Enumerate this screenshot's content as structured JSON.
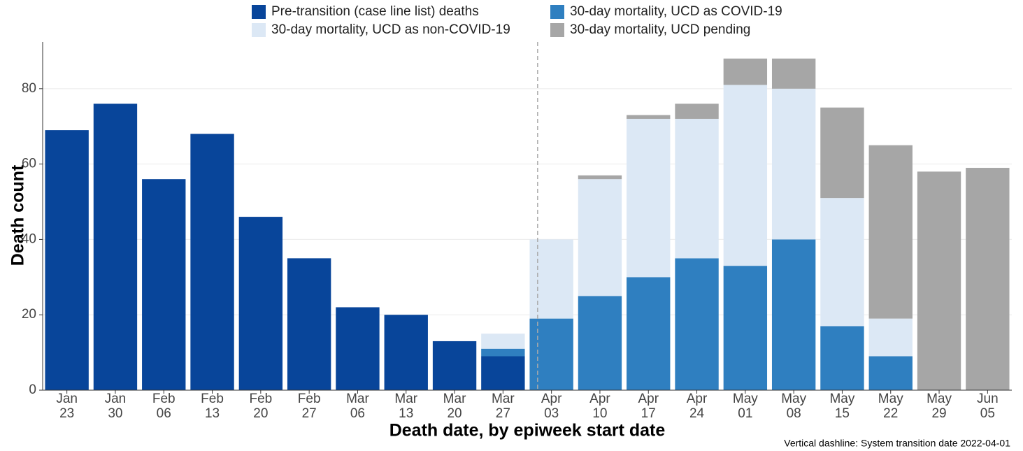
{
  "chart_data": {
    "type": "bar",
    "stacked": true,
    "y_label": "Death count",
    "x_label": "Death date, by epiweek start date",
    "annotation": "Vertical dashline: System transition date 2022-04-01",
    "categories": [
      "Jan 23",
      "Jan 30",
      "Feb 06",
      "Feb 13",
      "Feb 20",
      "Feb 27",
      "Mar 06",
      "Mar 13",
      "Mar 20",
      "Mar 27",
      "Apr 03",
      "Apr 10",
      "Apr 17",
      "Apr 24",
      "May 01",
      "May 08",
      "May 15",
      "May 22",
      "May 29",
      "Jun 05"
    ],
    "series": [
      {
        "name": "Pre-transition (case line list) deaths",
        "color": "#08459a",
        "values": [
          69,
          76,
          56,
          68,
          46,
          35,
          22,
          20,
          13,
          9,
          0,
          0,
          0,
          0,
          0,
          0,
          0,
          0,
          0,
          0
        ]
      },
      {
        "name": "30-day mortality, UCD as COVID-19",
        "color": "#2f7fc0",
        "values": [
          0,
          0,
          0,
          0,
          0,
          0,
          0,
          0,
          0,
          2,
          19,
          25,
          30,
          35,
          33,
          40,
          17,
          9,
          0,
          0
        ]
      },
      {
        "name": "30-day mortality, UCD as non-COVID-19",
        "color": "#dce8f5",
        "values": [
          0,
          0,
          0,
          0,
          0,
          0,
          0,
          0,
          0,
          4,
          21,
          31,
          42,
          37,
          48,
          40,
          34,
          10,
          0,
          0
        ]
      },
      {
        "name": "30-day mortality, UCD pending",
        "color": "#a6a6a6",
        "values": [
          0,
          0,
          0,
          0,
          0,
          0,
          0,
          0,
          0,
          0,
          0,
          1,
          1,
          4,
          7,
          8,
          24,
          46,
          58,
          59
        ]
      }
    ],
    "ylim": [
      0,
      92.4
    ],
    "yticks": [
      0,
      20,
      40,
      60,
      80
    ],
    "grid": true
  }
}
